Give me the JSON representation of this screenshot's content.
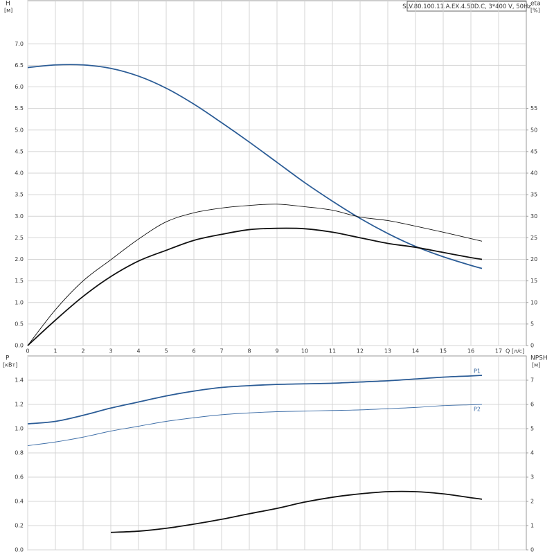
{
  "chart_data": [
    {
      "type": "line",
      "title": "SLV.80.100.11.A.EX.4.50D.C, 3*400 V, 50Hz",
      "y_label": "H",
      "y_unit": "[м]",
      "y2_label": "eta",
      "y2_unit": "[%]",
      "x_label": "Q [л/с]",
      "x": [
        0,
        1,
        2,
        3,
        4,
        5,
        6,
        7,
        8,
        9,
        10,
        11,
        12,
        13,
        14,
        15,
        16,
        16.4
      ],
      "xlim": [
        0,
        18
      ],
      "xticks": [
        0,
        1,
        2,
        3,
        4,
        5,
        6,
        7,
        8,
        9,
        10,
        11,
        12,
        13,
        14,
        15,
        16,
        17
      ],
      "ylim": [
        0,
        8
      ],
      "yticks": [
        {
          "value": 0,
          "label": "0.0"
        },
        {
          "value": 0.5,
          "label": "0.5"
        },
        {
          "value": 1,
          "label": "1.0"
        },
        {
          "value": 1.5,
          "label": "1.5"
        },
        {
          "value": 2,
          "label": "2.0"
        },
        {
          "value": 2.5,
          "label": "2.5"
        },
        {
          "value": 3,
          "label": "3.0"
        },
        {
          "value": 3.5,
          "label": "3.5"
        },
        {
          "value": 4,
          "label": "4.0"
        },
        {
          "value": 4.5,
          "label": "4.5"
        },
        {
          "value": 5,
          "label": "5.0"
        },
        {
          "value": 5.5,
          "label": "5.5"
        },
        {
          "value": 6,
          "label": "6.0"
        },
        {
          "value": 6.5,
          "label": "6.5"
        },
        {
          "value": 7,
          "label": "7.0"
        }
      ],
      "y2lim": [
        0,
        80
      ],
      "y2ticks": [
        0,
        5,
        10,
        15,
        20,
        25,
        30,
        35,
        40,
        45,
        50,
        55
      ],
      "grid": true,
      "series": [
        {
          "color": "#2b5c96",
          "width": 2,
          "values": [
            6.45,
            6.51,
            6.51,
            6.43,
            6.25,
            5.97,
            5.6,
            5.17,
            4.72,
            4.25,
            3.78,
            3.35,
            2.95,
            2.6,
            2.3,
            2.06,
            1.86,
            1.79
          ]
        },
        {
          "color": "#111111",
          "width": 1,
          "axis": "y2",
          "values": [
            0,
            8.3,
            15,
            19.9,
            24.7,
            28.7,
            30.8,
            31.9,
            32.5,
            32.8,
            32.2,
            31.4,
            29.8,
            29,
            27.7,
            26.3,
            24.8,
            24.2
          ]
        },
        {
          "color": "#111111",
          "width": 2,
          "axis": "y2",
          "values": [
            0,
            5.9,
            11.4,
            16,
            19.6,
            22.1,
            24.4,
            25.8,
            26.9,
            27.2,
            27.1,
            26.3,
            25,
            23.7,
            22.8,
            21.6,
            20.4,
            20
          ]
        }
      ]
    },
    {
      "type": "line",
      "y_label": "P",
      "y_unit": "[кВт]",
      "y2_label": "NPSH",
      "y2_unit": "[м]",
      "x": [
        0,
        1,
        2,
        3,
        4,
        5,
        6,
        7,
        8,
        9,
        10,
        11,
        12,
        13,
        14,
        15,
        16,
        16.4
      ],
      "xlim": [
        0,
        18
      ],
      "ylim": [
        0,
        1.6
      ],
      "yticks": [
        {
          "value": 0,
          "label": "0.0"
        },
        {
          "value": 0.2,
          "label": "0.2"
        },
        {
          "value": 0.4,
          "label": "0.4"
        },
        {
          "value": 0.6,
          "label": "0.6"
        },
        {
          "value": 0.8,
          "label": "0.8"
        },
        {
          "value": 1,
          "label": "1.0"
        },
        {
          "value": 1.2,
          "label": "1.2"
        },
        {
          "value": 1.4,
          "label": "1.4"
        }
      ],
      "y2lim": [
        0,
        8
      ],
      "y2ticks": [
        0,
        1,
        2,
        3,
        4,
        5,
        6,
        7
      ],
      "grid": true,
      "series": [
        {
          "name": "P1",
          "color": "#2b5c96",
          "width": 2,
          "values": [
            1.04,
            1.06,
            1.11,
            1.17,
            1.22,
            1.27,
            1.31,
            1.34,
            1.355,
            1.365,
            1.37,
            1.375,
            1.385,
            1.395,
            1.41,
            1.425,
            1.435,
            1.44
          ]
        },
        {
          "name": "P2",
          "color": "#3f6fa8",
          "width": 1,
          "values": [
            0.86,
            0.89,
            0.93,
            0.98,
            1.02,
            1.06,
            1.09,
            1.115,
            1.13,
            1.14,
            1.145,
            1.15,
            1.155,
            1.165,
            1.175,
            1.19,
            1.197,
            1.2
          ]
        },
        {
          "color": "#111111",
          "width": 2,
          "axis": "y2",
          "values": [
            null,
            null,
            null,
            0.72,
            0.77,
            0.89,
            1.06,
            1.26,
            1.49,
            1.71,
            1.97,
            2.17,
            2.31,
            2.4,
            2.4,
            2.31,
            2.15,
            2.09
          ]
        }
      ]
    }
  ]
}
